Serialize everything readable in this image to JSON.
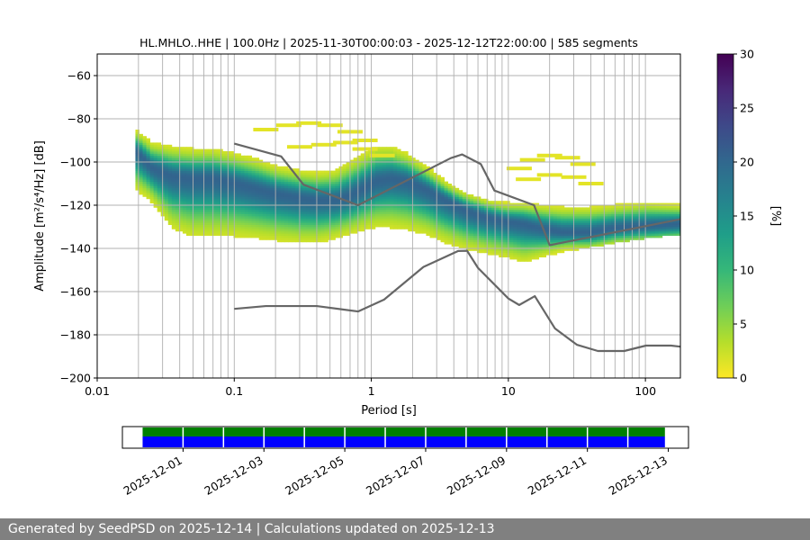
{
  "title": "HL.MHLO..HHE | 100.0Hz | 2025-11-30T00:00:03 - 2025-12-12T22:00:00 | 585 segments",
  "footer": "Generated by SeedPSD on 2025-12-14 | Calculations updated on 2025-12-13",
  "colors": {
    "noise_model": "#666666",
    "grid": "#b0b0b0",
    "avail_green": "#008000",
    "avail_blue": "#0000ff",
    "viridis": [
      "#fde725",
      "#b5de2b",
      "#6ece58",
      "#35b779",
      "#1f9e89",
      "#26828e",
      "#31688e",
      "#3e4989",
      "#482878",
      "#440154"
    ]
  },
  "chart_data": [
    {
      "type": "heatmap",
      "title": "HL.MHLO..HHE | 100.0Hz | 2025-11-30T00:00:03 - 2025-12-12T22:00:00 | 585 segments",
      "xlabel": "Period [s]",
      "ylabel": "Amplitude [m²/s⁴/Hz] [dB]",
      "xscale": "log",
      "xlim": [
        0.01,
        180
      ],
      "ylim": [
        -200,
        -50
      ],
      "xticks": [
        0.01,
        0.1,
        1,
        10,
        100
      ],
      "xticklabels": [
        "0.01",
        "0.1",
        "1",
        "10",
        "100"
      ],
      "yticks": [
        -200,
        -180,
        -160,
        -140,
        -120,
        -100,
        -80,
        -60
      ],
      "yticklabels": [
        "−200",
        "−180",
        "−160",
        "−140",
        "−120",
        "−100",
        "−80",
        "−60"
      ],
      "grid": true,
      "colorbar": {
        "label": "[%]",
        "range": [
          0,
          30
        ],
        "ticks": [
          0,
          5,
          10,
          15,
          20,
          25,
          30
        ],
        "ticklabels": [
          "0",
          "5",
          "10",
          "15",
          "20",
          "25",
          "30"
        ],
        "colormap": "viridis"
      },
      "psd_mode": {
        "period": [
          0.019,
          0.025,
          0.035,
          0.05,
          0.07,
          0.1,
          0.15,
          0.2,
          0.3,
          0.4,
          0.55,
          0.7,
          0.9,
          1.1,
          1.4,
          1.8,
          2.5,
          3.5,
          5,
          7,
          10,
          13,
          17,
          25,
          40,
          60,
          100,
          180
        ],
        "db": [
          -95,
          -103,
          -107,
          -108,
          -108,
          -110,
          -113,
          -115,
          -117,
          -118,
          -118,
          -116,
          -112,
          -109,
          -108,
          -109,
          -113,
          -118,
          -123,
          -126,
          -128,
          -129,
          -131,
          -133,
          -133,
          -131,
          -130,
          -129
        ]
      },
      "psd_spread": {
        "upper": [
          -86,
          -92,
          -94,
          -95,
          -95,
          -97,
          -100,
          -103,
          -105,
          -106,
          -105,
          -101,
          -97,
          -94,
          -94,
          -97,
          -103,
          -110,
          -116,
          -119,
          -120,
          -120,
          -121,
          -122,
          -122,
          -121,
          -120,
          -121
        ],
        "lower": [
          -112,
          -118,
          -130,
          -134,
          -134,
          -134,
          -135,
          -136,
          -137,
          -137,
          -135,
          -133,
          -131,
          -130,
          -130,
          -131,
          -133,
          -137,
          -140,
          -142,
          -144,
          -146,
          -144,
          -141,
          -139,
          -137,
          -135,
          -133
        ]
      },
      "psd_outliers": {
        "period": [
          0.17,
          0.25,
          0.35,
          0.5,
          0.7,
          0.9,
          0.3,
          0.45,
          0.65,
          0.9,
          1.2,
          12,
          15,
          20,
          27,
          35,
          14,
          20,
          30,
          40
        ],
        "db": [
          -85,
          -83,
          -82,
          -83,
          -86,
          -90,
          -93,
          -92,
          -91,
          -94,
          -97,
          -103,
          -99,
          -97,
          -98,
          -101,
          -108,
          -106,
          -107,
          -110
        ]
      },
      "series": [
        {
          "period": [
            0.1,
            0.22,
            0.32,
            0.8,
            3.8,
            4.6,
            6.3,
            7.9,
            15.4,
            20,
            180
          ],
          "db": [
            -91.5,
            -97.4,
            -110.5,
            -120,
            -98.2,
            -96.5,
            -101,
            -113.2,
            -120,
            -138.5,
            -126.5
          ]
        },
        {
          "period": [
            0.1,
            0.17,
            0.4,
            0.8,
            1.24,
            2.4,
            4.3,
            5,
            6,
            10,
            12,
            15.6,
            21.9,
            31.6,
            45,
            70,
            101,
            154,
            180
          ],
          "db": [
            -168,
            -166.7,
            -166.7,
            -169.2,
            -163.7,
            -148.6,
            -141.2,
            -141.1,
            -149,
            -163.2,
            -166.2,
            -162.1,
            -177.1,
            -184.6,
            -187.5,
            -187.5,
            -185,
            -185,
            -185.5
          ]
        }
      ]
    },
    {
      "type": "bar",
      "description": "data availability",
      "xlim": [
        "2025-11-29T12:00",
        "2025-12-13T12:00"
      ],
      "xticklabels": [
        "2025-12-01",
        "2025-12-03",
        "2025-12-05",
        "2025-12-07",
        "2025-12-09",
        "2025-12-11",
        "2025-12-13"
      ],
      "xticks": [
        "2025-12-01",
        "2025-12-03",
        "2025-12-05",
        "2025-12-07",
        "2025-12-09",
        "2025-12-11",
        "2025-12-13"
      ],
      "coverage_start": "2025-11-30T00:00",
      "coverage_end": "2025-12-12T22:00",
      "gap_dates": [
        "2025-12-01",
        "2025-12-02",
        "2025-12-03",
        "2025-12-04",
        "2025-12-05",
        "2025-12-06",
        "2025-12-07",
        "2025-12-08",
        "2025-12-09",
        "2025-12-10",
        "2025-12-11",
        "2025-12-12"
      ]
    }
  ]
}
